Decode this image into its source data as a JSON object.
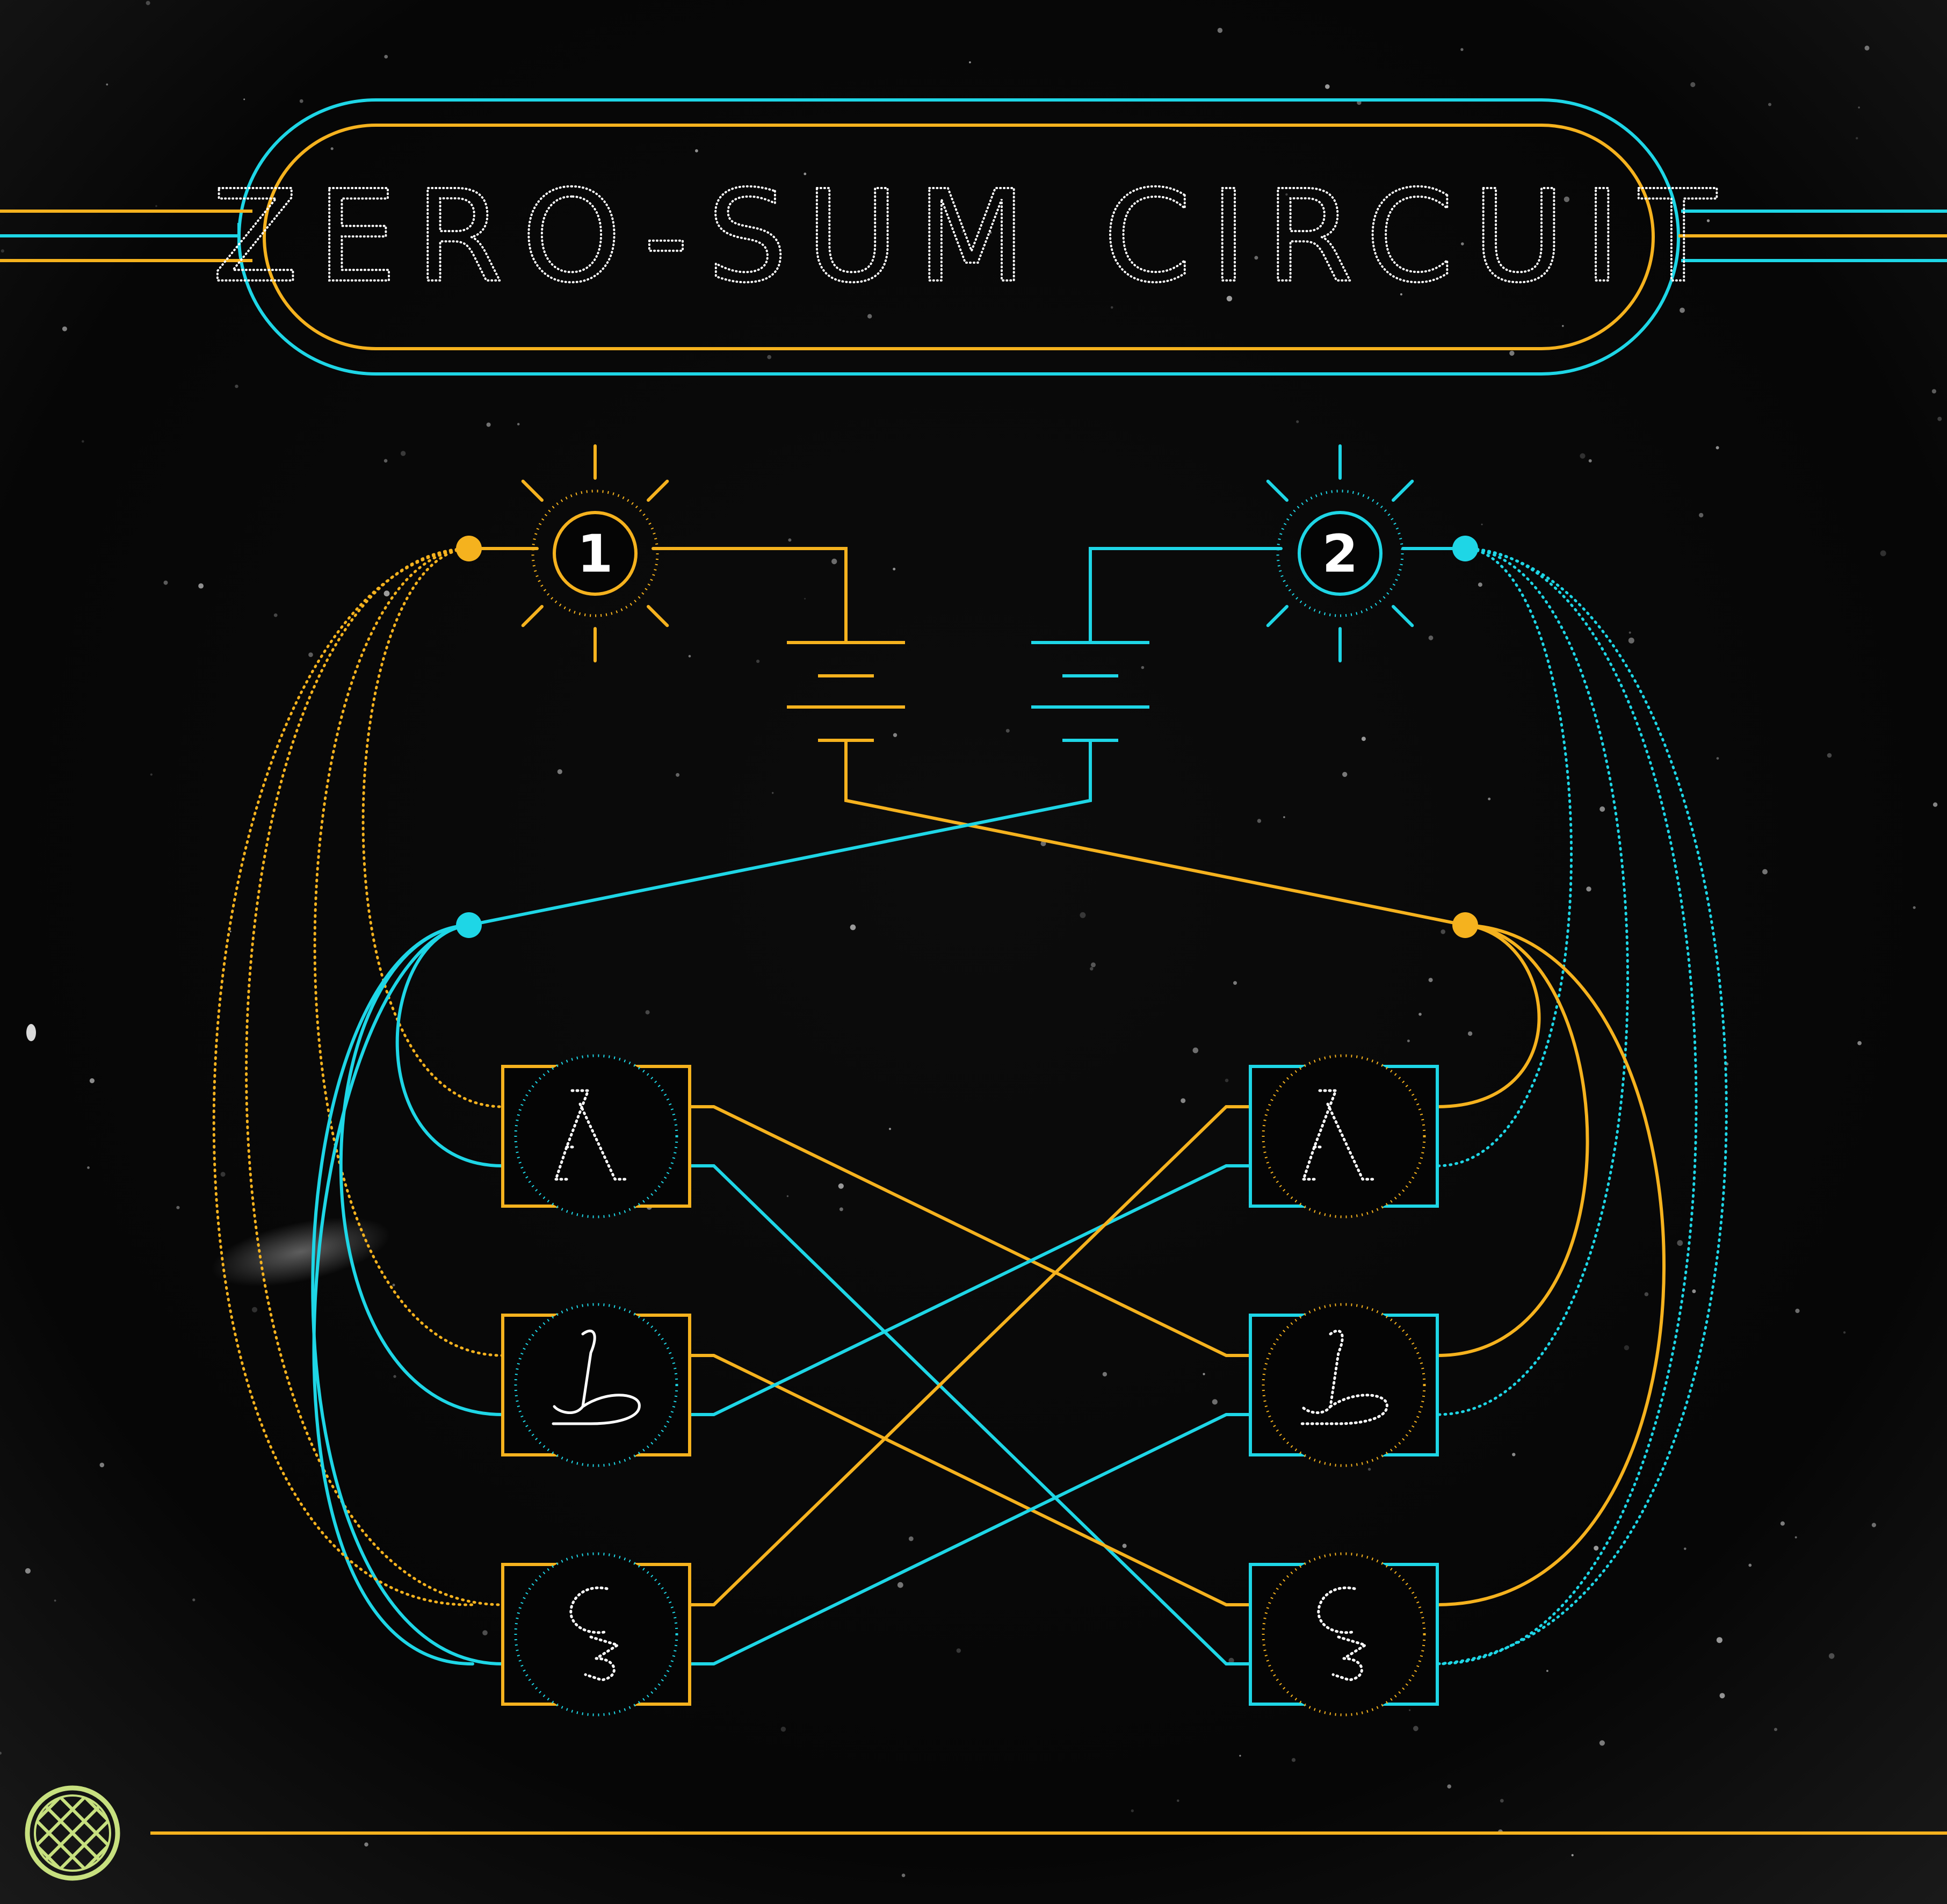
{
  "title": "ZERO-SUM CIRCUIT",
  "colors": {
    "background": "#050505",
    "gold": "#F5B21E",
    "cyan": "#1ED6E6",
    "logo": "#C7E07F",
    "glyph_stroke": "#FFFFFF"
  },
  "switches": [
    {
      "label": "1",
      "color_key": "gold"
    },
    {
      "label": "2",
      "color_key": "cyan"
    }
  ],
  "columns": [
    {
      "side": "left",
      "frame": "gold",
      "ring": "cyan",
      "glyphs": [
        "lambda-glyph",
        "ta-glyph",
        "ayin-glyph"
      ]
    },
    {
      "side": "right",
      "frame": "cyan",
      "ring": "gold",
      "glyphs": [
        "lambda-glyph",
        "ta-glyph",
        "ayin-glyph"
      ]
    }
  ],
  "logo_icon": "sphere-grid-icon"
}
